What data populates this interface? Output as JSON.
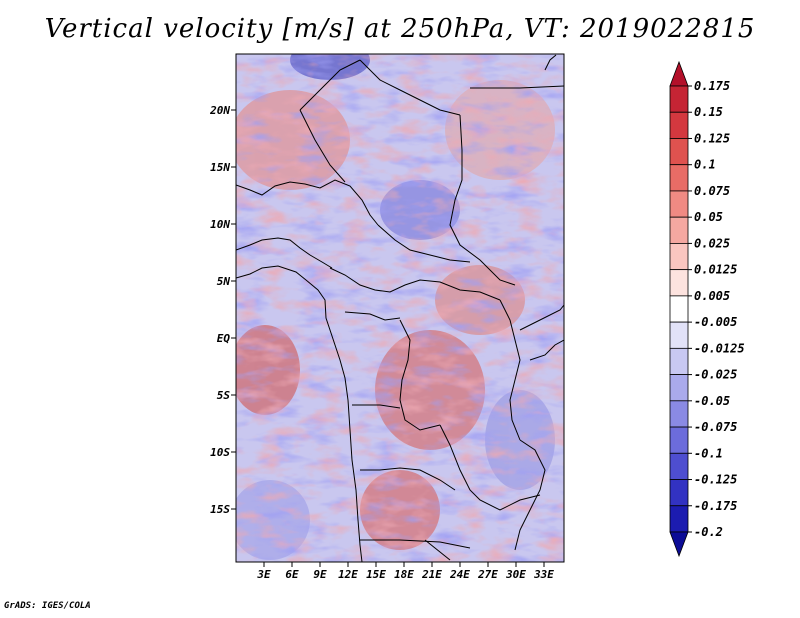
{
  "title": "Vertical velocity [m/s] at 250hPa, VT: 2019022815",
  "footer": "GrADS: IGES/COLA",
  "map": {
    "lat_labels": [
      "20N",
      "15N",
      "10N",
      "5N",
      "EQ",
      "5S",
      "10S",
      "15S"
    ],
    "lon_labels": [
      "3E",
      "6E",
      "9E",
      "12E",
      "15E",
      "18E",
      "21E",
      "24E",
      "27E",
      "30E",
      "33E"
    ]
  },
  "colorbar": {
    "labels": [
      "0.175",
      "0.15",
      "0.125",
      "0.1",
      "0.075",
      "0.05",
      "0.025",
      "0.0125",
      "0.005",
      "-0.005",
      "-0.0125",
      "-0.025",
      "-0.05",
      "-0.075",
      "-0.1",
      "-0.125",
      "-0.175",
      "-0.2"
    ],
    "colors": [
      "#b3102a",
      "#c52434",
      "#d4383f",
      "#df524f",
      "#e86c66",
      "#f08a83",
      "#f5a8a1",
      "#fac6c0",
      "#fde3df",
      "#ffffff",
      "#e2e2f8",
      "#c8c8f2",
      "#aaaaec",
      "#8a8ae4",
      "#6c6cdb",
      "#4e4ed0",
      "#3232c2",
      "#1c1cb0",
      "#0c0c96"
    ]
  }
}
